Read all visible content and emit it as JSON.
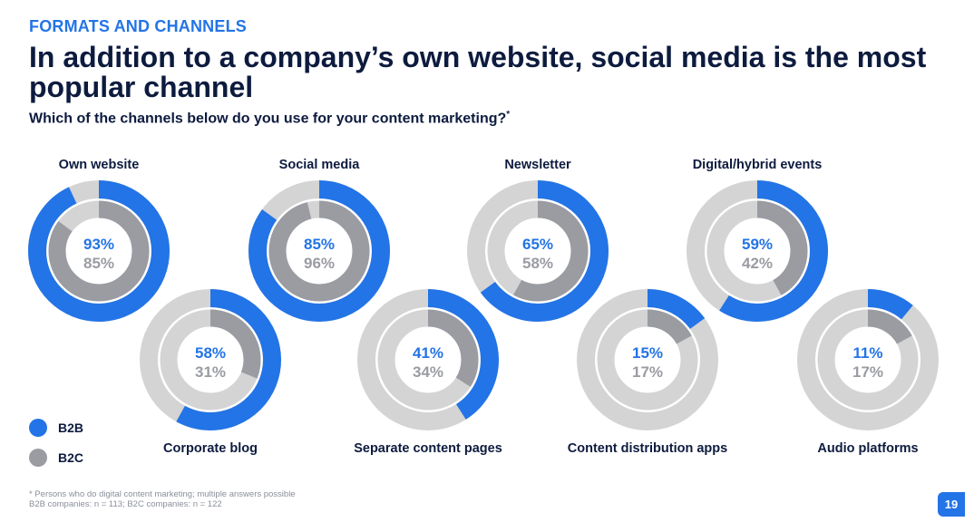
{
  "header": {
    "kicker": "FORMATS AND CHANNELS",
    "headline": "In addition to a company’s own website, social media is the most popular channel",
    "question": "Which of the channels below do you use for your content marketing?",
    "question_mark": "*"
  },
  "chart_data": {
    "type": "donut",
    "series_order": [
      "B2B",
      "B2C"
    ],
    "colors": {
      "B2B": "#2374e6",
      "B2C": "#9a9ca2",
      "remainder": "#d4d4d4"
    },
    "categories": [
      {
        "name": "Own website",
        "b2b": 93,
        "b2c": 85,
        "b2b_label": "93%",
        "b2c_label": "85%"
      },
      {
        "name": "Corporate blog",
        "b2b": 58,
        "b2c": 31,
        "b2b_label": "58%",
        "b2c_label": "31%"
      },
      {
        "name": "Social media",
        "b2b": 85,
        "b2c": 96,
        "b2b_label": "85%",
        "b2c_label": "96%"
      },
      {
        "name": "Separate content pages",
        "b2b": 41,
        "b2c": 34,
        "b2b_label": "41%",
        "b2c_label": "34%"
      },
      {
        "name": "Newsletter",
        "b2b": 65,
        "b2c": 58,
        "b2b_label": "65%",
        "b2c_label": "58%"
      },
      {
        "name": "Content distribution apps",
        "b2b": 15,
        "b2c": 17,
        "b2b_label": "15%",
        "b2c_label": "17%"
      },
      {
        "name": "Digital/hybrid events",
        "b2b": 59,
        "b2c": 42,
        "b2b_label": "59%",
        "b2c_label": "42%"
      },
      {
        "name": "Audio platforms",
        "b2b": 11,
        "b2c": 17,
        "b2b_label": "11%",
        "b2c_label": "17%"
      }
    ]
  },
  "legend": {
    "b2b": "B2B",
    "b2c": "B2C"
  },
  "footnote": {
    "line1": "* Persons who do digital content marketing; multiple answers possible",
    "line2": "B2B companies: n = 113; B2C companies: n = 122"
  },
  "page_number": "19"
}
